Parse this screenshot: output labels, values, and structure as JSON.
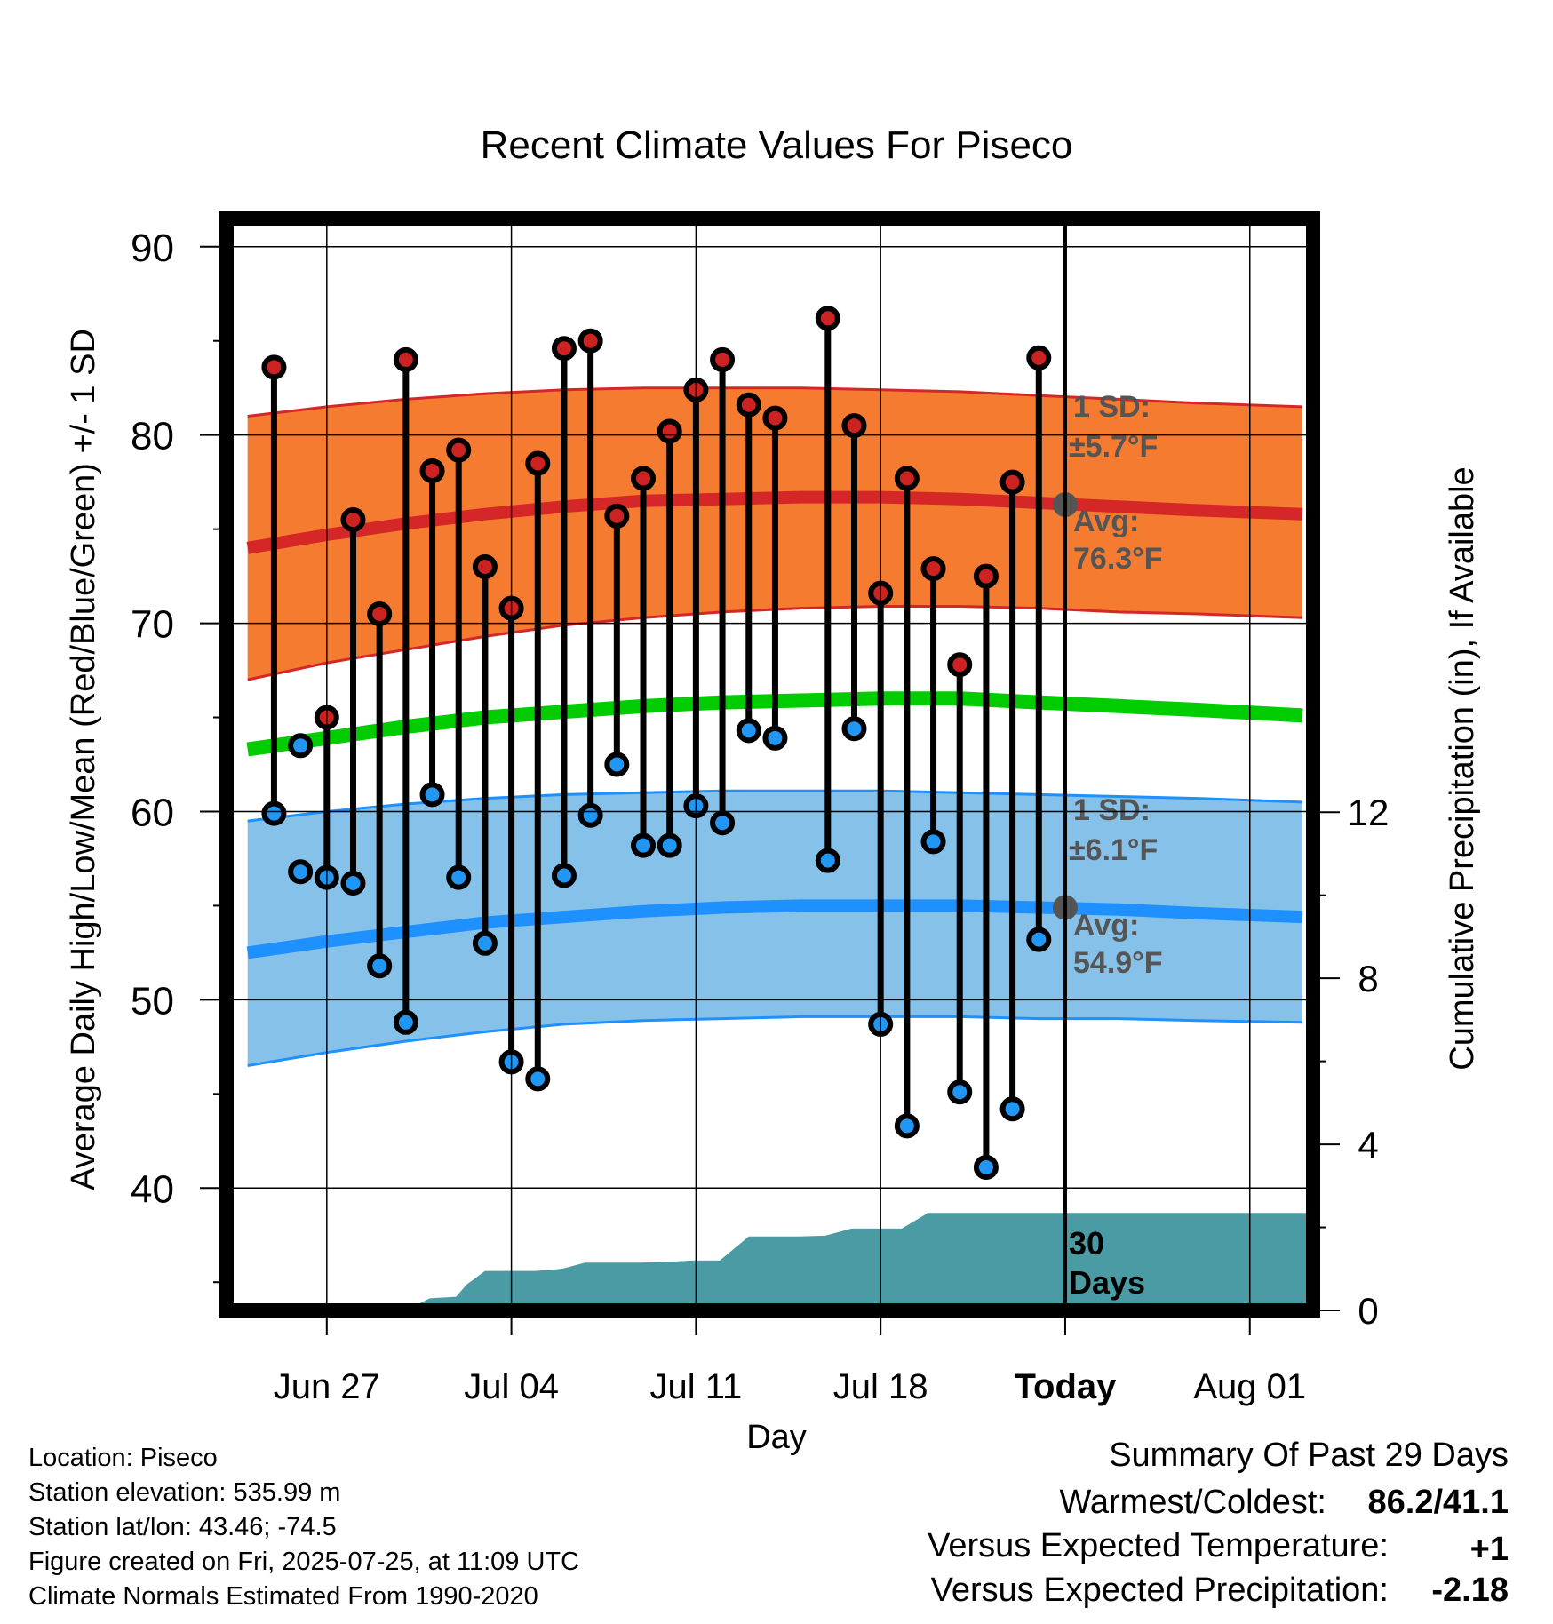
{
  "chart_data": {
    "type": "line",
    "title": "Recent Climate Values For Piseco",
    "xlabel": "Day",
    "ylabel": "Average Daily High/Low/Mean (Red/Blue/Green) +/- 1 SD",
    "y2label": "Cumulative Precipitation (in), If Available",
    "ylim": [
      33.5,
      91.5
    ],
    "y2lim": [
      0,
      26.3
    ],
    "yticks": [
      40,
      50,
      60,
      70,
      80,
      90
    ],
    "y2ticks": [
      0,
      4,
      8,
      12
    ],
    "x_tick_labels": [
      {
        "day": 3,
        "label": "Jun 27"
      },
      {
        "day": 10,
        "label": "Jul 04"
      },
      {
        "day": 17,
        "label": "Jul 11"
      },
      {
        "day": 24,
        "label": "Jul 18"
      },
      {
        "day": 31,
        "label": "Today"
      },
      {
        "day": 38,
        "label": "Aug 01"
      }
    ],
    "xlim": [
      -0.8,
      40.4
    ],
    "today_day": 31,
    "days": [
      1,
      2,
      3,
      4,
      5,
      6,
      7,
      8,
      9,
      10,
      11,
      12,
      13,
      14,
      15,
      16,
      17,
      18,
      19,
      20,
      21,
      22,
      23,
      24,
      25,
      26,
      27,
      28,
      29,
      30
    ],
    "highs": [
      83.6,
      null,
      65.0,
      75.5,
      70.5,
      84.0,
      78.1,
      79.2,
      73.0,
      70.8,
      78.5,
      84.6,
      85.0,
      75.7,
      77.7,
      80.2,
      82.4,
      84.0,
      81.6,
      80.9,
      null,
      86.2,
      80.5,
      71.6,
      77.7,
      72.9,
      67.8,
      72.5,
      77.5,
      84.1
    ],
    "lows": [
      59.9,
      63.5,
      56.5,
      56.2,
      51.8,
      48.8,
      60.9,
      56.5,
      53.0,
      46.7,
      45.8,
      56.6,
      59.8,
      62.5,
      58.2,
      58.2,
      60.3,
      59.4,
      64.3,
      63.9,
      null,
      57.4,
      64.4,
      48.7,
      43.3,
      58.4,
      45.1,
      41.1,
      44.2,
      53.2
    ],
    "lows_extra": [
      {
        "day": 2,
        "low": 56.8
      }
    ],
    "climatology": {
      "days": [
        0,
        3,
        6,
        9,
        12,
        15,
        18,
        21,
        24,
        27,
        30,
        33,
        36,
        40
      ],
      "avg_high": [
        74.0,
        74.7,
        75.3,
        75.8,
        76.2,
        76.5,
        76.6,
        76.7,
        76.7,
        76.6,
        76.4,
        76.2,
        76.0,
        75.8
      ],
      "high_sd_upper": [
        81.0,
        81.5,
        81.9,
        82.2,
        82.4,
        82.5,
        82.5,
        82.5,
        82.4,
        82.3,
        82.1,
        81.9,
        81.7,
        81.5
      ],
      "high_sd_lower": [
        67.0,
        67.9,
        68.6,
        69.3,
        69.9,
        70.3,
        70.6,
        70.8,
        70.9,
        70.9,
        70.8,
        70.6,
        70.5,
        70.3
      ],
      "avg_mean": [
        63.3,
        63.9,
        64.5,
        65.0,
        65.3,
        65.6,
        65.8,
        65.9,
        66.0,
        66.0,
        65.8,
        65.6,
        65.4,
        65.1
      ],
      "avg_low": [
        52.5,
        53.1,
        53.6,
        54.1,
        54.4,
        54.7,
        54.9,
        55.0,
        55.0,
        55.0,
        54.9,
        54.8,
        54.6,
        54.4
      ],
      "low_sd_upper": [
        59.5,
        60.0,
        60.4,
        60.7,
        60.9,
        61.0,
        61.1,
        61.1,
        61.1,
        61.0,
        60.9,
        60.8,
        60.7,
        60.5
      ],
      "low_sd_lower": [
        46.5,
        47.2,
        47.8,
        48.3,
        48.7,
        48.9,
        49.0,
        49.1,
        49.1,
        49.1,
        49.0,
        49.0,
        48.9,
        48.8
      ]
    },
    "precip_cumulative": {
      "days": [
        -0.8,
        6.0,
        6.9,
        7.9,
        8.3,
        9.0,
        10.9,
        11.9,
        12.8,
        14.9,
        15.9,
        16.9,
        17.9,
        19.0,
        20.9,
        21.9,
        22.9,
        23.8,
        24.8,
        25.8,
        26.6,
        31.0,
        40.4
      ],
      "values": [
        0,
        0,
        0.29,
        0.33,
        0.62,
        0.95,
        0.95,
        1.0,
        1.15,
        1.15,
        1.17,
        1.2,
        1.2,
        1.78,
        1.78,
        1.8,
        1.97,
        1.97,
        1.97,
        2.35,
        2.35,
        2.35,
        2.35
      ]
    },
    "annotations": {
      "high_sd": "1 SD:",
      "high_sd_value": "±5.7°F",
      "high_avg": "Avg:",
      "high_avg_value": "76.3°F",
      "low_sd": "1 SD:",
      "low_sd_value": "±6.1°F",
      "low_avg": "Avg:",
      "low_avg_value": "54.9°F",
      "today_high_avg": 76.3,
      "today_low_avg": 54.9,
      "days_label_1": "30",
      "days_label_2": "Days"
    },
    "colors": {
      "high_band": "#f47b30",
      "high_line": "#d62728",
      "low_band": "#85c1e9",
      "low_line": "#1e90ff",
      "mean_line": "#00cc00",
      "precip": "#4a9ba4",
      "high_dot": "#cc2222",
      "low_dot": "#2196f3",
      "marker_grey": "#555555"
    }
  },
  "footer": {
    "location": "Location: Piseco",
    "elevation": "Station elevation: 535.99 m",
    "latlon": "Station lat/lon: 43.46; -74.5",
    "created": "Figure created on Fri, 2025-07-25, at 11:09 UTC",
    "normals": "Climate Normals Estimated From 1990-2020"
  },
  "summary": {
    "title": "Summary Of Past 29 Days",
    "warm_cold_label": "Warmest/Coldest:",
    "warm_cold_value": "86.2/41.1",
    "temp_label": "Versus Expected Temperature:",
    "temp_value": "+1",
    "temp_color": "#cc2222",
    "precip_label": "Versus Expected Precipitation:",
    "precip_value": "-2.18",
    "precip_color": "#a0522d"
  }
}
